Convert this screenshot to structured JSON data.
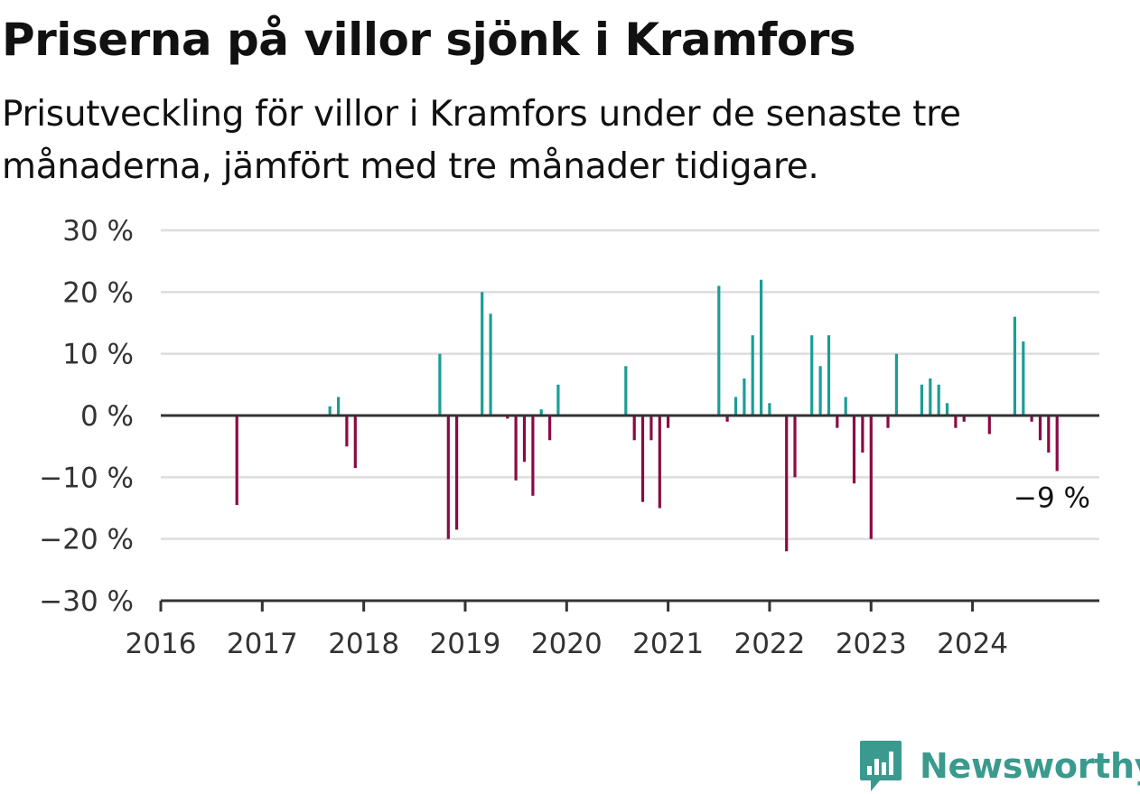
{
  "title": "Priserna på villor sjönk i Kramfors",
  "subtitle": "Prisutveckling för villor i Kramfors under de senaste tre månaderna, jämfört med tre månader tidigare.",
  "brand": {
    "name": "Newsworthy",
    "color": "#3a9a8e",
    "icon": "bar-chart-speech-bubble-icon"
  },
  "colors": {
    "positive": "#1a9e96",
    "negative": "#8b0a44",
    "grid": "#dddddd",
    "axis": "#333333"
  },
  "chart_data": {
    "type": "bar",
    "title": "Priserna på villor sjönk i Kramfors",
    "xlabel": "",
    "ylabel": "",
    "y_unit": "%",
    "ylim": [
      -30,
      30
    ],
    "yticks": [
      30,
      20,
      10,
      0,
      -10,
      -20,
      -30
    ],
    "ytick_labels": [
      "30 %",
      "20 %",
      "10 %",
      "0 %",
      "−10 %",
      "−20 %",
      "−30 %"
    ],
    "xlim": [
      "2016-01",
      "2025-04"
    ],
    "xticks": [
      "2016",
      "2017",
      "2018",
      "2019",
      "2020",
      "2021",
      "2022",
      "2023",
      "2024"
    ],
    "grid": true,
    "last_value_label": "−9 %",
    "points": [
      {
        "x": "2016-10",
        "y": -14.5
      },
      {
        "x": "2017-09",
        "y": 1.5
      },
      {
        "x": "2017-10",
        "y": 3
      },
      {
        "x": "2017-11",
        "y": -5
      },
      {
        "x": "2017-12",
        "y": -8.5
      },
      {
        "x": "2018-10",
        "y": 10
      },
      {
        "x": "2018-11",
        "y": -20
      },
      {
        "x": "2018-12",
        "y": -18.5
      },
      {
        "x": "2019-03",
        "y": 20
      },
      {
        "x": "2019-04",
        "y": 16.5
      },
      {
        "x": "2019-06",
        "y": -0.5
      },
      {
        "x": "2019-07",
        "y": -10.5
      },
      {
        "x": "2019-08",
        "y": -7.5
      },
      {
        "x": "2019-09",
        "y": -13
      },
      {
        "x": "2019-10",
        "y": 1
      },
      {
        "x": "2019-11",
        "y": -4
      },
      {
        "x": "2019-12",
        "y": 5
      },
      {
        "x": "2020-08",
        "y": 8
      },
      {
        "x": "2020-09",
        "y": -4
      },
      {
        "x": "2020-10",
        "y": -14
      },
      {
        "x": "2020-11",
        "y": -4
      },
      {
        "x": "2020-12",
        "y": -15
      },
      {
        "x": "2021-01",
        "y": -2
      },
      {
        "x": "2021-07",
        "y": 21
      },
      {
        "x": "2021-08",
        "y": -1
      },
      {
        "x": "2021-09",
        "y": 3
      },
      {
        "x": "2021-10",
        "y": 6
      },
      {
        "x": "2021-11",
        "y": 13
      },
      {
        "x": "2021-12",
        "y": 22
      },
      {
        "x": "2022-01",
        "y": 2
      },
      {
        "x": "2022-03",
        "y": -22
      },
      {
        "x": "2022-04",
        "y": -10
      },
      {
        "x": "2022-06",
        "y": 13
      },
      {
        "x": "2022-07",
        "y": 8
      },
      {
        "x": "2022-08",
        "y": 13
      },
      {
        "x": "2022-09",
        "y": -2
      },
      {
        "x": "2022-10",
        "y": 3
      },
      {
        "x": "2022-11",
        "y": -11
      },
      {
        "x": "2022-12",
        "y": -6
      },
      {
        "x": "2023-01",
        "y": -20
      },
      {
        "x": "2023-03",
        "y": -2
      },
      {
        "x": "2023-04",
        "y": 10
      },
      {
        "x": "2023-07",
        "y": 5
      },
      {
        "x": "2023-08",
        "y": 6
      },
      {
        "x": "2023-09",
        "y": 5
      },
      {
        "x": "2023-10",
        "y": 2
      },
      {
        "x": "2023-11",
        "y": -2
      },
      {
        "x": "2023-12",
        "y": -1
      },
      {
        "x": "2024-03",
        "y": -3
      },
      {
        "x": "2024-06",
        "y": 16
      },
      {
        "x": "2024-07",
        "y": 12
      },
      {
        "x": "2024-08",
        "y": -1
      },
      {
        "x": "2024-09",
        "y": -4
      },
      {
        "x": "2024-10",
        "y": -6
      },
      {
        "x": "2024-11",
        "y": -9
      }
    ]
  }
}
